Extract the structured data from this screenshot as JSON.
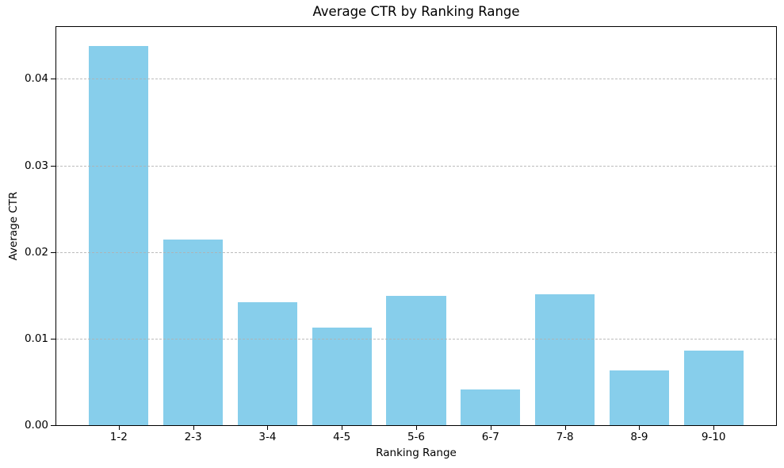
{
  "chart_data": {
    "type": "bar",
    "title": "Average CTR by Ranking Range",
    "xlabel": "Ranking Range",
    "ylabel": "Average CTR",
    "categories": [
      "1-2",
      "2-3",
      "3-4",
      "4-5",
      "5-6",
      "6-7",
      "7-8",
      "8-9",
      "9-10"
    ],
    "values": [
      0.0438,
      0.0214,
      0.0142,
      0.0113,
      0.0149,
      0.0041,
      0.0151,
      0.0063,
      0.0086
    ],
    "ytick_values": [
      0,
      0.01,
      0.02,
      0.03,
      0.04
    ],
    "ytick_labels": [
      "0.00",
      "0.01",
      "0.02",
      "0.03",
      "0.04"
    ],
    "ylim": [
      0,
      0.046
    ],
    "xlim": [
      -0.84,
      8.84
    ],
    "bar_width_units": 0.8,
    "bar_color": "#87CEEB",
    "grid": {
      "axis": "y",
      "linestyle": "dashed",
      "color": "#b0b0b0"
    },
    "legend_position": "none",
    "background_color": "#ffffff",
    "spine_color": "#000000",
    "text_color": "#000000"
  }
}
